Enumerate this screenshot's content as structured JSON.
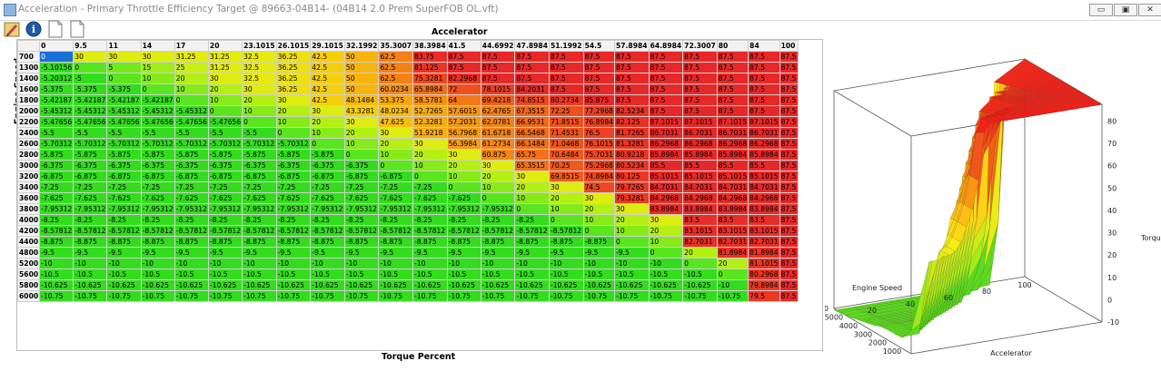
{
  "window": {
    "title": "Acceleration - Primary Throttle Efficiency Target @ 89663-04B14- (04B14 2.0 Prem SuperFOB OL.vft)",
    "min_label": "▭",
    "max_label": "▣",
    "close_label": "✕"
  },
  "table": {
    "x_axis_title": "Accelerator",
    "y_axis_title": "Engine Speed",
    "bottom_title": "Torque Percent",
    "columns": [
      "0",
      "9.5",
      "11",
      "14",
      "17",
      "20",
      "23.1015",
      "26.1015",
      "29.1015",
      "32.1992",
      "35.3007",
      "38.3984",
      "41.5",
      "44.6992",
      "47.8984",
      "51.1992",
      "54.5",
      "57.8984",
      "64.8984",
      "72.3007",
      "80",
      "84",
      "100"
    ],
    "rows": [
      {
        "rpm": "700",
        "cells": [
          "0",
          "30",
          "30",
          "30",
          "31.25",
          "31.25",
          "32.5",
          "36.25",
          "42.5",
          "50",
          "62.5",
          "83.75",
          "87.5",
          "87.5",
          "87.5",
          "87.5",
          "87.5",
          "87.5",
          "87.5",
          "87.5",
          "87.5",
          "87.5",
          "87.5"
        ]
      },
      {
        "rpm": "1300",
        "cells": [
          "-5.10156",
          "0",
          "5",
          "15",
          "25",
          "31.25",
          "32.5",
          "36.25",
          "42.5",
          "50",
          "62.5",
          "81.125",
          "87.5",
          "87.5",
          "87.5",
          "87.5",
          "87.5",
          "87.5",
          "87.5",
          "87.5",
          "87.5",
          "87.5",
          "87.5"
        ]
      },
      {
        "rpm": "1400",
        "cells": [
          "-5.20312",
          "-5",
          "0",
          "10",
          "20",
          "30",
          "32.5",
          "36.25",
          "42.5",
          "50",
          "62.5",
          "75.3281",
          "82.2968",
          "87.5",
          "87.5",
          "87.5",
          "87.5",
          "87.5",
          "87.5",
          "87.5",
          "87.5",
          "87.5",
          "87.5"
        ]
      },
      {
        "rpm": "1600",
        "cells": [
          "-5.375",
          "-5.375",
          "-5.375",
          "0",
          "10",
          "20",
          "30",
          "36.25",
          "42.5",
          "50",
          "60.0234",
          "65.8984",
          "72",
          "78.1015",
          "84.2031",
          "87.5",
          "87.5",
          "87.5",
          "87.5",
          "87.5",
          "87.5",
          "87.5",
          "87.5"
        ]
      },
      {
        "rpm": "1800",
        "cells": [
          "-5.42187",
          "-5.42187",
          "-5.42187",
          "-5.42187",
          "0",
          "10",
          "20",
          "30",
          "42.5",
          "48.1484",
          "53.375",
          "58.5781",
          "64",
          "69.4218",
          "74.8515",
          "80.2734",
          "85.875",
          "87.5",
          "87.5",
          "87.5",
          "87.5",
          "87.5",
          "87.5"
        ]
      },
      {
        "rpm": "2000",
        "cells": [
          "-5.45312",
          "-5.45312",
          "-5.45312",
          "-5.45312",
          "-5.45312",
          "0",
          "10",
          "20",
          "30",
          "43.3281",
          "48.0234",
          "52.7265",
          "57.6015",
          "62.4765",
          "67.3515",
          "72.25",
          "77.2968",
          "82.5234",
          "87.5",
          "87.5",
          "87.5",
          "87.5",
          "87.5"
        ]
      },
      {
        "rpm": "2200",
        "cells": [
          "-5.47656",
          "-5.47656",
          "-5.47656",
          "-5.47656",
          "-5.47656",
          "-5.47656",
          "0",
          "10",
          "20",
          "30",
          "47.625",
          "52.3281",
          "57.2031",
          "62.0781",
          "66.9531",
          "71.8515",
          "76.8984",
          "82.125",
          "87.1015",
          "87.1015",
          "87.1015",
          "87.1015",
          "87.5"
        ]
      },
      {
        "rpm": "2400",
        "cells": [
          "-5.5",
          "-5.5",
          "-5.5",
          "-5.5",
          "-5.5",
          "-5.5",
          "-5.5",
          "0",
          "10",
          "20",
          "30",
          "51.9218",
          "56.7968",
          "61.6718",
          "66.5468",
          "71.4531",
          "76.5",
          "81.7265",
          "86.7031",
          "86.7031",
          "86.7031",
          "86.7031",
          "87.5"
        ]
      },
      {
        "rpm": "2600",
        "cells": [
          "-5.70312",
          "-5.70312",
          "-5.70312",
          "-5.70312",
          "-5.70312",
          "-5.70312",
          "-5.70312",
          "-5.70312",
          "0",
          "10",
          "20",
          "30",
          "56.3984",
          "61.2734",
          "66.1484",
          "71.0468",
          "76.1015",
          "81.3281",
          "86.2968",
          "86.2968",
          "86.2968",
          "86.2968",
          "87.5"
        ]
      },
      {
        "rpm": "2800",
        "cells": [
          "-5.875",
          "-5.875",
          "-5.875",
          "-5.875",
          "-5.875",
          "-5.875",
          "-5.875",
          "-5.875",
          "-5.875",
          "0",
          "10",
          "20",
          "30",
          "60.875",
          "65.75",
          "70.6484",
          "75.7031",
          "80.9218",
          "85.8984",
          "85.8984",
          "85.8984",
          "85.8984",
          "87.5"
        ]
      },
      {
        "rpm": "3000",
        "cells": [
          "-6.375",
          "-6.375",
          "-6.375",
          "-6.375",
          "-6.375",
          "-6.375",
          "-6.375",
          "-6.375",
          "-6.375",
          "-6.375",
          "0",
          "10",
          "20",
          "30",
          "65.3515",
          "70.25",
          "75.2968",
          "80.5234",
          "85.5",
          "85.5",
          "85.5",
          "85.5",
          "87.5"
        ]
      },
      {
        "rpm": "3200",
        "cells": [
          "-6.875",
          "-6.875",
          "-6.875",
          "-6.875",
          "-6.875",
          "-6.875",
          "-6.875",
          "-6.875",
          "-6.875",
          "-6.875",
          "-6.875",
          "0",
          "10",
          "20",
          "30",
          "69.8515",
          "74.8984",
          "80.125",
          "85.1015",
          "85.1015",
          "85.1015",
          "85.1015",
          "87.5"
        ]
      },
      {
        "rpm": "3400",
        "cells": [
          "-7.25",
          "-7.25",
          "-7.25",
          "-7.25",
          "-7.25",
          "-7.25",
          "-7.25",
          "-7.25",
          "-7.25",
          "-7.25",
          "-7.25",
          "-7.25",
          "0",
          "10",
          "20",
          "30",
          "74.5",
          "79.7265",
          "84.7031",
          "84.7031",
          "84.7031",
          "84.7031",
          "87.5"
        ]
      },
      {
        "rpm": "3600",
        "cells": [
          "-7.625",
          "-7.625",
          "-7.625",
          "-7.625",
          "-7.625",
          "-7.625",
          "-7.625",
          "-7.625",
          "-7.625",
          "-7.625",
          "-7.625",
          "-7.625",
          "-7.625",
          "0",
          "10",
          "20",
          "30",
          "79.3281",
          "84.2968",
          "84.2968",
          "84.2968",
          "84.2968",
          "87.5"
        ]
      },
      {
        "rpm": "3800",
        "cells": [
          "-7.95312",
          "-7.95312",
          "-7.95312",
          "-7.95312",
          "-7.95312",
          "-7.95312",
          "-7.95312",
          "-7.95312",
          "-7.95312",
          "-7.95312",
          "-7.95312",
          "-7.95312",
          "-7.95312",
          "-7.95312",
          "0",
          "10",
          "20",
          "30",
          "83.8984",
          "83.8984",
          "83.8984",
          "83.8984",
          "87.5"
        ]
      },
      {
        "rpm": "4000",
        "cells": [
          "-8.25",
          "-8.25",
          "-8.25",
          "-8.25",
          "-8.25",
          "-8.25",
          "-8.25",
          "-8.25",
          "-8.25",
          "-8.25",
          "-8.25",
          "-8.25",
          "-8.25",
          "-8.25",
          "-8.25",
          "0",
          "10",
          "20",
          "30",
          "83.5",
          "83.5",
          "83.5",
          "87.5"
        ]
      },
      {
        "rpm": "4200",
        "cells": [
          "-8.57812",
          "-8.57812",
          "-8.57812",
          "-8.57812",
          "-8.57812",
          "-8.57812",
          "-8.57812",
          "-8.57812",
          "-8.57812",
          "-8.57812",
          "-8.57812",
          "-8.57812",
          "-8.57812",
          "-8.57812",
          "-8.57812",
          "-8.57812",
          "0",
          "10",
          "20",
          "83.1015",
          "83.1015",
          "83.1015",
          "87.5"
        ]
      },
      {
        "rpm": "4400",
        "cells": [
          "-8.875",
          "-8.875",
          "-8.875",
          "-8.875",
          "-8.875",
          "-8.875",
          "-8.875",
          "-8.875",
          "-8.875",
          "-8.875",
          "-8.875",
          "-8.875",
          "-8.875",
          "-8.875",
          "-8.875",
          "-8.875",
          "-8.875",
          "0",
          "10",
          "82.7031",
          "82.7031",
          "82.7031",
          "87.5"
        ]
      },
      {
        "rpm": "4800",
        "cells": [
          "-9.5",
          "-9.5",
          "-9.5",
          "-9.5",
          "-9.5",
          "-9.5",
          "-9.5",
          "-9.5",
          "-9.5",
          "-9.5",
          "-9.5",
          "-9.5",
          "-9.5",
          "-9.5",
          "-9.5",
          "-9.5",
          "-9.5",
          "-9.5",
          "0",
          "20",
          "81.8984",
          "81.8984",
          "87.5"
        ]
      },
      {
        "rpm": "5200",
        "cells": [
          "-10",
          "-10",
          "-10",
          "-10",
          "-10",
          "-10",
          "-10",
          "-10",
          "-10",
          "-10",
          "-10",
          "-10",
          "-10",
          "-10",
          "-10",
          "-10",
          "-10",
          "-10",
          "-10",
          "0",
          "20",
          "81.1015",
          "87.5"
        ]
      },
      {
        "rpm": "5600",
        "cells": [
          "-10.5",
          "-10.5",
          "-10.5",
          "-10.5",
          "-10.5",
          "-10.5",
          "-10.5",
          "-10.5",
          "-10.5",
          "-10.5",
          "-10.5",
          "-10.5",
          "-10.5",
          "-10.5",
          "-10.5",
          "-10.5",
          "-10.5",
          "-10.5",
          "-10.5",
          "-10.5",
          "0",
          "80.2968",
          "87.5"
        ]
      },
      {
        "rpm": "5800",
        "cells": [
          "-10.625",
          "-10.625",
          "-10.625",
          "-10.625",
          "-10.625",
          "-10.625",
          "-10.625",
          "-10.625",
          "-10.625",
          "-10.625",
          "-10.625",
          "-10.625",
          "-10.625",
          "-10.625",
          "-10.625",
          "-10.625",
          "-10.625",
          "-10.625",
          "-10.625",
          "-10.625",
          "-10",
          "79.8984",
          "87.5"
        ]
      },
      {
        "rpm": "6000",
        "cells": [
          "-10.75",
          "-10.75",
          "-10.75",
          "-10.75",
          "-10.75",
          "-10.75",
          "-10.75",
          "-10.75",
          "-10.75",
          "-10.75",
          "-10.75",
          "-10.75",
          "-10.75",
          "-10.75",
          "-10.75",
          "-10.75",
          "-10.75",
          "-10.75",
          "-10.75",
          "-10.75",
          "-10.75",
          "79.5",
          "87.5"
        ]
      }
    ]
  },
  "plot3d": {
    "x_label": "Accelerator",
    "y_label": "Engine Speed",
    "z_label": "Torqu",
    "x_ticks": [
      "20",
      "40",
      "60",
      "80",
      "100"
    ],
    "y_ticks": [
      "1000",
      "2000",
      "3000",
      "4000",
      "5000",
      "6000"
    ],
    "z_ticks": [
      "-10",
      "0",
      "10",
      "20",
      "30",
      "40",
      "50",
      "60",
      "70",
      "80"
    ]
  }
}
